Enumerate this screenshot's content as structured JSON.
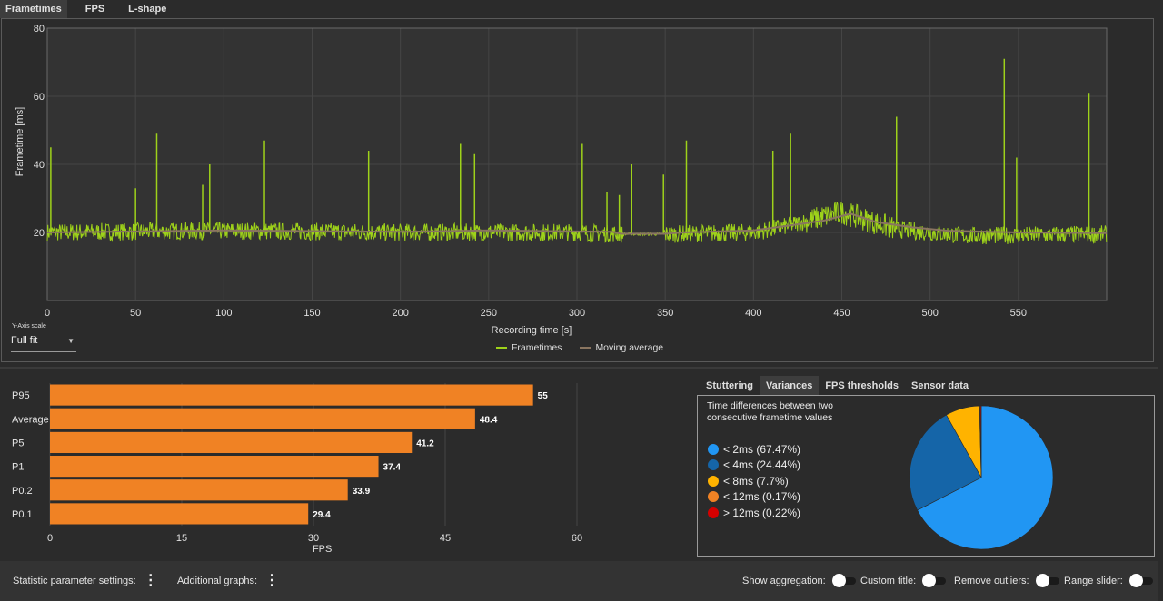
{
  "tabs_top": [
    "Frametimes",
    "FPS",
    "L-shape"
  ],
  "frametime_chart": {
    "chart_data": {
      "type": "line",
      "xlabel": "Recording time [s]",
      "ylabel": "Frametime [ms]",
      "xlim": [
        0,
        600
      ],
      "ylim": [
        0,
        80
      ],
      "x_ticks": [
        0,
        50,
        100,
        150,
        200,
        250,
        300,
        350,
        400,
        450,
        500,
        550
      ],
      "y_ticks": [
        20,
        40,
        60,
        80
      ],
      "grid": true,
      "series": [
        {
          "name": "Frametimes",
          "color": "#9ed21a",
          "baseline": [
            [
              0,
              20
            ],
            [
              100,
              20.5
            ],
            [
              200,
              20
            ],
            [
              300,
              20
            ],
            [
              325,
              19.5
            ],
            [
              350,
              19.5
            ],
            [
              400,
              20
            ],
            [
              420,
              22
            ],
            [
              450,
              26
            ],
            [
              480,
              21
            ],
            [
              520,
              19
            ],
            [
              600,
              19.5
            ]
          ],
          "spikes": [
            [
              2,
              45
            ],
            [
              50,
              33
            ],
            [
              62,
              49
            ],
            [
              88,
              34
            ],
            [
              92,
              40
            ],
            [
              123,
              47
            ],
            [
              182,
              44
            ],
            [
              234,
              46
            ],
            [
              242,
              43
            ],
            [
              303,
              46
            ],
            [
              317,
              32
            ],
            [
              324,
              31
            ],
            [
              331,
              40
            ],
            [
              349,
              37
            ],
            [
              362,
              47
            ],
            [
              411,
              44
            ],
            [
              421,
              49
            ],
            [
              481,
              54
            ],
            [
              542,
              71
            ],
            [
              549,
              42
            ],
            [
              590,
              61
            ]
          ]
        },
        {
          "name": "Moving average",
          "color": "#8a7560",
          "points": [
            [
              0,
              20
            ],
            [
              50,
              20.3
            ],
            [
              100,
              20.6
            ],
            [
              150,
              20.4
            ],
            [
              200,
              20.2
            ],
            [
              250,
              20.6
            ],
            [
              300,
              20.3
            ],
            [
              320,
              20.2
            ],
            [
              325,
              19.6
            ],
            [
              350,
              19.6
            ],
            [
              360,
              20
            ],
            [
              400,
              20.6
            ],
            [
              420,
              22
            ],
            [
              440,
              23.5
            ],
            [
              455,
              25.5
            ],
            [
              470,
              23
            ],
            [
              490,
              21.5
            ],
            [
              510,
              20.5
            ],
            [
              550,
              20
            ],
            [
              600,
              19.8
            ]
          ]
        }
      ]
    },
    "legend": [
      "Frametimes",
      "Moving average"
    ],
    "y_axis_scale_label": "Y-Axis scale",
    "y_axis_scale_value": "Full fit",
    "y_axis_scale_caret": "▼"
  },
  "fps_chart": {
    "chart_data": {
      "type": "bar",
      "orientation": "horizontal",
      "categories": [
        "P95",
        "Average",
        "P5",
        "P1",
        "P0.2",
        "P0.1"
      ],
      "values": [
        55,
        48.4,
        41.2,
        37.4,
        33.9,
        29.4
      ],
      "value_labels": [
        "55",
        "48.4",
        "41.2",
        "37.4",
        "33.9",
        "29.4"
      ],
      "xlabel": "FPS",
      "xlim": [
        0,
        60
      ],
      "x_ticks": [
        0,
        15,
        30,
        45,
        60
      ],
      "bar_color": "#f08224",
      "grid": true
    }
  },
  "right_tabs": [
    "Stuttering",
    "Variances",
    "FPS thresholds",
    "Sensor data"
  ],
  "right_tab_active": "Variances",
  "variances": {
    "title": "Time differences between two consecutive frametime values",
    "chart_data": {
      "type": "pie",
      "categories": [
        "< 2ms",
        "< 4ms",
        "< 8ms",
        "< 12ms",
        "> 12ms"
      ],
      "values": [
        67.47,
        24.44,
        7.7,
        0.17,
        0.22
      ],
      "colors": [
        "#2196f3",
        "#1565a8",
        "#ffb300",
        "#f08224",
        "#d50000"
      ]
    },
    "legend_labels": [
      "< 2ms (67.47%)",
      "< 4ms (24.44%)",
      "< 8ms (7.7%)",
      "< 12ms (0.17%)",
      "> 12ms (0.22%)"
    ]
  },
  "bottom_bar": {
    "statistic_settings": "Statistic parameter settings:",
    "additional_graphs": "Additional graphs:",
    "show_aggregation": "Show aggregation:",
    "custom_title": "Custom title:",
    "remove_outliers": "Remove outliers:",
    "range_slider": "Range slider:",
    "kebab_glyph": "⋮"
  }
}
